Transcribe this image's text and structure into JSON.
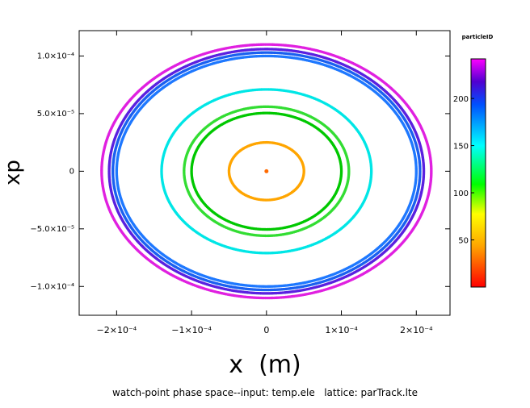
{
  "chart_data": {
    "type": "scatter",
    "title": "",
    "xlabel": "x  (m)",
    "ylabel": "xp",
    "caption": "watch-point phase space--input: temp.ele   lattice: parTrack.lte",
    "xlim": [
      -0.00025,
      0.000245
    ],
    "ylim": [
      -0.000125,
      0.000122
    ],
    "x_ticks": [
      {
        "value": -0.0002,
        "label": "−2×10⁻⁴"
      },
      {
        "value": -0.0001,
        "label": "−1×10⁻⁴"
      },
      {
        "value": 0,
        "label": "0"
      },
      {
        "value": 0.0001,
        "label": "1×10⁻⁴"
      },
      {
        "value": 0.0002,
        "label": "2×10⁻⁴"
      }
    ],
    "y_ticks": [
      {
        "value": 0.0001,
        "label": "1.0×10⁻⁴"
      },
      {
        "value": 5e-05,
        "label": "5.0×10⁻⁵"
      },
      {
        "value": 0,
        "label": "0"
      },
      {
        "value": -5e-05,
        "label": "−5.0×10⁻⁵"
      },
      {
        "value": -0.0001,
        "label": "−1.0×10⁻⁴"
      }
    ],
    "colorbar": {
      "title": "particleID",
      "min": 0,
      "max": 242,
      "ticks": [
        {
          "value": 50,
          "label": "50"
        },
        {
          "value": 100,
          "label": "100"
        },
        {
          "value": 150,
          "label": "150"
        },
        {
          "value": 200,
          "label": "200"
        }
      ]
    },
    "series": [
      {
        "particleID": 10,
        "x_amplitude": 0.0,
        "xp_amplitude": 0.0,
        "color": "#ff6a00"
      },
      {
        "particleID": 60,
        "x_amplitude": 5e-05,
        "xp_amplitude": 2.5e-05,
        "color": "#ffa500"
      },
      {
        "particleID": 105,
        "x_amplitude": 0.0001,
        "xp_amplitude": 5.05e-05,
        "color": "#00c800"
      },
      {
        "particleID": 120,
        "x_amplitude": 0.00011,
        "xp_amplitude": 5.6e-05,
        "color": "#33dd33"
      },
      {
        "particleID": 150,
        "x_amplitude": 0.00014,
        "xp_amplitude": 7.1e-05,
        "color": "#00e6e6"
      },
      {
        "particleID": 180,
        "x_amplitude": 0.0002,
        "xp_amplitude": 0.0001,
        "color": "#1e78ff"
      },
      {
        "particleID": 190,
        "x_amplitude": 0.000205,
        "xp_amplitude": 0.000103,
        "color": "#1a60f0"
      },
      {
        "particleID": 210,
        "x_amplitude": 0.00021,
        "xp_amplitude": 0.000106,
        "color": "#5a20e0"
      },
      {
        "particleID": 240,
        "x_amplitude": 0.00022,
        "xp_amplitude": 0.00011,
        "color": "#e020e0"
      }
    ],
    "grid": false,
    "legend": "colorbar-right"
  }
}
